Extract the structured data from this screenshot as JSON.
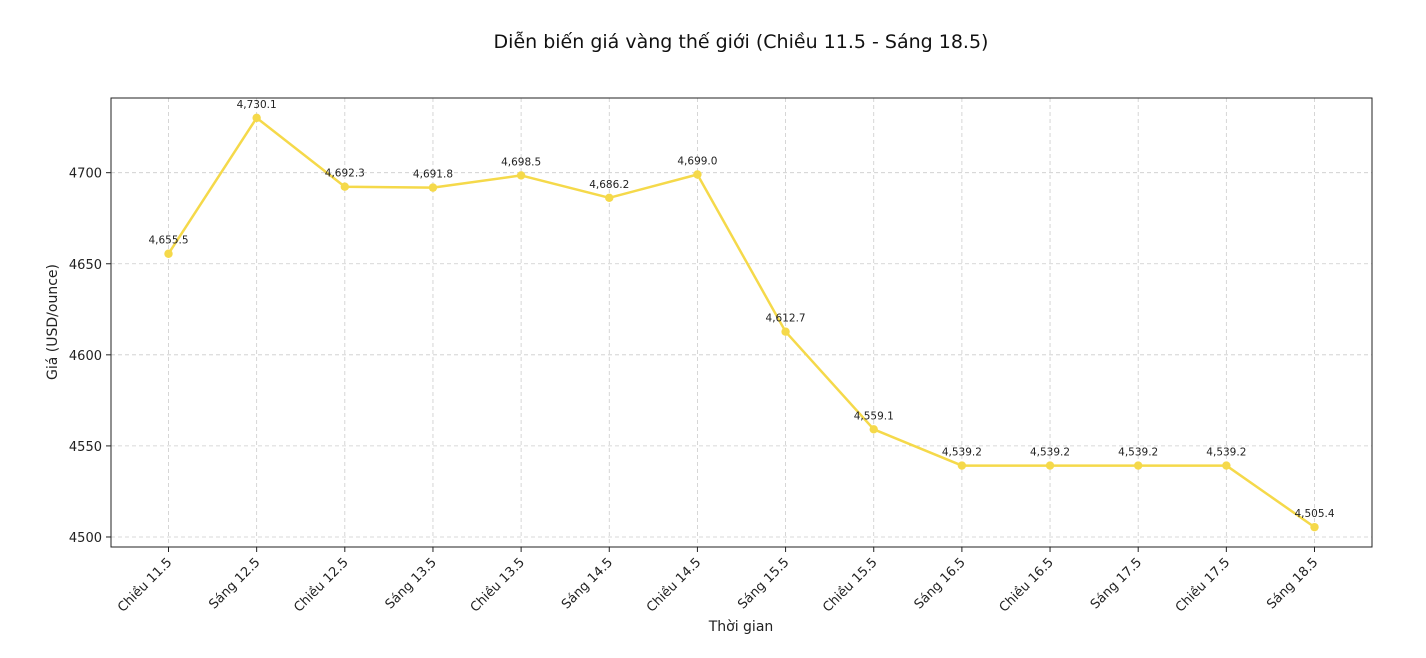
{
  "chart_data": {
    "type": "line",
    "title": "Diễn biến giá vàng thế giới (Chiều 11.5 - Sáng 18.5)",
    "xlabel": "Thời gian",
    "ylabel": "Giá (USD/ounce)",
    "categories": [
      "Chiều 11.5",
      "Sáng 12.5",
      "Chiều 12.5",
      "Sáng 13.5",
      "Chiều 13.5",
      "Sáng 14.5",
      "Chiều 14.5",
      "Sáng 15.5",
      "Chiều 15.5",
      "Sáng 16.5",
      "Chiều 16.5",
      "Sáng 17.5",
      "Chiều 17.5",
      "Sáng 18.5"
    ],
    "series": [
      {
        "values": [
          4655.5,
          4730.1,
          4692.3,
          4691.8,
          4698.5,
          4686.2,
          4699.0,
          4612.7,
          4559.1,
          4539.2,
          4539.2,
          4539.2,
          4539.2,
          4505.4
        ],
        "color": "#f5d94a"
      }
    ],
    "data_labels": [
      "4,655.5",
      "4,730.1",
      "4,692.3",
      "4,691.8",
      "4,698.5",
      "4,686.2",
      "4,699.0",
      "4,612.7",
      "4,559.1",
      "4,539.2",
      "4,539.2",
      "4,539.2",
      "4,539.2",
      "4,505.4"
    ],
    "yticks": [
      4500,
      4550,
      4600,
      4650,
      4700
    ],
    "ylim": [
      4494.5,
      4741
    ],
    "grid": true,
    "legend": "none"
  }
}
